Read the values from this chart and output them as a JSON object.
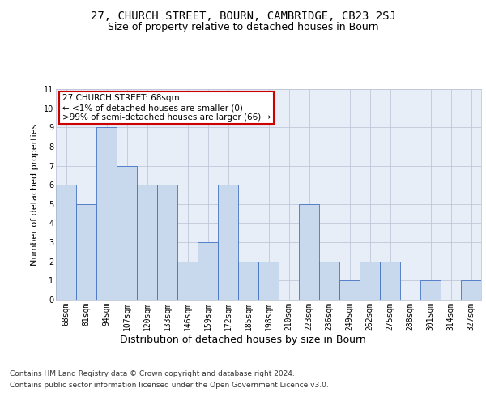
{
  "title": "27, CHURCH STREET, BOURN, CAMBRIDGE, CB23 2SJ",
  "subtitle": "Size of property relative to detached houses in Bourn",
  "xlabel": "Distribution of detached houses by size in Bourn",
  "ylabel": "Number of detached properties",
  "categories": [
    "68sqm",
    "81sqm",
    "94sqm",
    "107sqm",
    "120sqm",
    "133sqm",
    "146sqm",
    "159sqm",
    "172sqm",
    "185sqm",
    "198sqm",
    "210sqm",
    "223sqm",
    "236sqm",
    "249sqm",
    "262sqm",
    "275sqm",
    "288sqm",
    "301sqm",
    "314sqm",
    "327sqm"
  ],
  "values": [
    6,
    5,
    9,
    7,
    6,
    6,
    2,
    3,
    6,
    2,
    2,
    0,
    5,
    2,
    1,
    2,
    2,
    0,
    1,
    0,
    1
  ],
  "bar_color": "#c9d9ed",
  "bar_edge_color": "#4472c4",
  "annotation_title": "27 CHURCH STREET: 68sqm",
  "annotation_line1": "← <1% of detached houses are smaller (0)",
  "annotation_line2": ">99% of semi-detached houses are larger (66) →",
  "annotation_box_color": "#ffffff",
  "annotation_box_edge": "#cc0000",
  "ylim": [
    0,
    11
  ],
  "yticks": [
    0,
    1,
    2,
    3,
    4,
    5,
    6,
    7,
    8,
    9,
    10,
    11
  ],
  "grid_color": "#c0c8d8",
  "background_color": "#e8eef7",
  "footer_line1": "Contains HM Land Registry data © Crown copyright and database right 2024.",
  "footer_line2": "Contains public sector information licensed under the Open Government Licence v3.0.",
  "title_fontsize": 10,
  "subtitle_fontsize": 9,
  "xlabel_fontsize": 9,
  "ylabel_fontsize": 8,
  "tick_fontsize": 7,
  "annotation_fontsize": 7.5,
  "footer_fontsize": 6.5
}
